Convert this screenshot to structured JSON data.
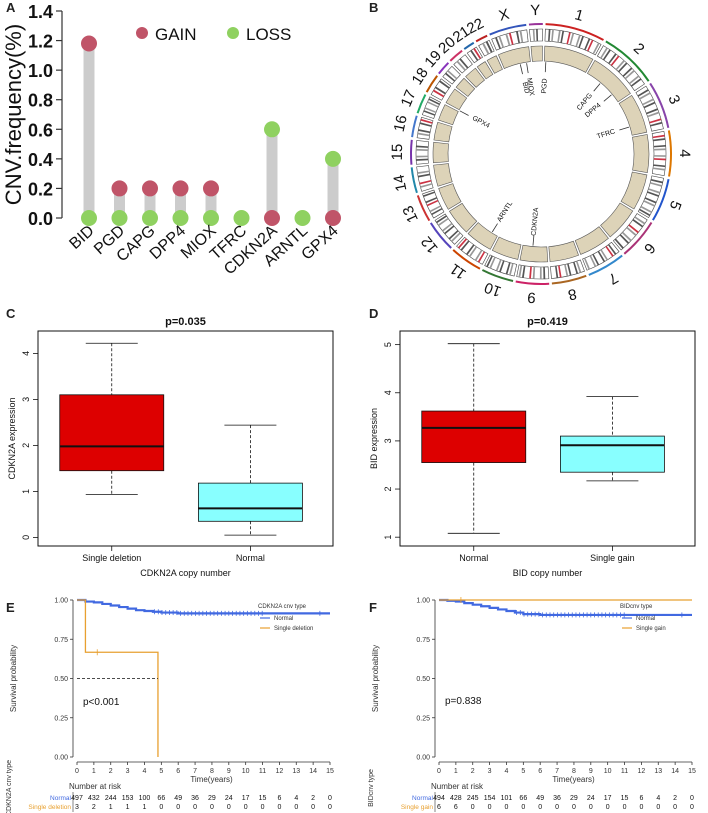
{
  "colors": {
    "gain": "#c05468",
    "loss": "#8fd160",
    "stem": "#cccccc",
    "box_red": "#dd0000",
    "box_cyan": "#88ffff",
    "km_normal": "#4169e1",
    "km_alt": "#e8a030",
    "ring_fill": "#ddd3b8"
  },
  "panel_labels": [
    "A",
    "B",
    "C",
    "D",
    "E",
    "F"
  ],
  "chart_data": [
    {
      "id": "A",
      "type": "scatter",
      "subtype": "lollipop",
      "ylabel": "CNV.frequency(%)",
      "ylim": [
        0,
        1.4
      ],
      "yticks": [
        "0.0",
        "0.2",
        "0.4",
        "0.6",
        "0.8",
        "1.0",
        "1.2",
        "1.4"
      ],
      "categories": [
        "BID",
        "PGD",
        "CAPG",
        "DPP4",
        "MIOX",
        "TFRC",
        "CDKN2A",
        "ARNTL",
        "GPX4"
      ],
      "series": [
        {
          "name": "GAIN",
          "values": [
            1.18,
            0.2,
            0.2,
            0.2,
            0.2,
            0.0,
            0.0,
            0.0,
            0.0
          ]
        },
        {
          "name": "LOSS",
          "values": [
            0.0,
            0.0,
            0.0,
            0.0,
            0.0,
            0.0,
            0.6,
            0.0,
            0.4
          ]
        }
      ],
      "legend": [
        "GAIN",
        "LOSS"
      ]
    },
    {
      "id": "B",
      "type": "other",
      "subtype": "circos",
      "chromosomes": [
        "1",
        "2",
        "3",
        "4",
        "5",
        "6",
        "7",
        "8",
        "9",
        "10",
        "11",
        "12",
        "13",
        "14",
        "15",
        "16",
        "17",
        "18",
        "19",
        "20",
        "21",
        "22",
        "X",
        "Y"
      ],
      "gene_labels": [
        "PGD",
        "CAPG",
        "DPP4",
        "TFRC",
        "CDKN2A",
        "ARNTL",
        "GPX4",
        "BID",
        "MIOX"
      ]
    },
    {
      "id": "C",
      "type": "other",
      "subtype": "boxplot",
      "title": "p=0.035",
      "xlabel": "CDKN2A copy number",
      "ylabel": "CDKN2A expression",
      "ylim": [
        -0.1,
        4.4
      ],
      "yticks": [
        "0",
        "1",
        "2",
        "3",
        "4"
      ],
      "categories": [
        "Single deletion",
        "Normal"
      ],
      "boxes": [
        {
          "min": 0.93,
          "q1": 1.45,
          "median": 1.98,
          "q3": 3.1,
          "max": 4.22
        },
        {
          "min": 0.05,
          "q1": 0.35,
          "median": 0.63,
          "q3": 1.18,
          "max": 2.44
        }
      ]
    },
    {
      "id": "D",
      "type": "other",
      "subtype": "boxplot",
      "title": "p=0.419",
      "xlabel": "BID copy number",
      "ylabel": "BID expression",
      "ylim": [
        0.9,
        5.2
      ],
      "yticks": [
        "1",
        "2",
        "3",
        "4",
        "5"
      ],
      "categories": [
        "Normal",
        "Single gain"
      ],
      "boxes": [
        {
          "min": 1.08,
          "q1": 2.55,
          "median": 3.27,
          "q3": 3.62,
          "max": 5.02
        },
        {
          "min": 2.17,
          "q1": 2.35,
          "median": 2.91,
          "q3": 3.1,
          "max": 3.92
        }
      ]
    },
    {
      "id": "E",
      "type": "line",
      "subtype": "kaplan-meier",
      "ylabel": "Survival probability",
      "xlabel": "Time(years)",
      "xlim": [
        0,
        15
      ],
      "ylim": [
        0,
        1
      ],
      "xticks": [
        "0",
        "1",
        "2",
        "3",
        "4",
        "5",
        "6",
        "7",
        "8",
        "9",
        "10",
        "11",
        "12",
        "13",
        "14",
        "15"
      ],
      "yticks": [
        "0.00",
        "0.25",
        "0.50",
        "0.75",
        "1.00"
      ],
      "pvalue": "p<0.001",
      "legend_title": "CDKN2A cnv type",
      "series": [
        {
          "name": "Normal",
          "x": [
            0,
            0.5,
            1,
            1.5,
            2,
            2.5,
            3,
            3.5,
            4,
            4.5,
            5,
            6,
            8,
            10,
            11,
            14,
            15
          ],
          "y": [
            1.0,
            0.99,
            0.985,
            0.975,
            0.965,
            0.955,
            0.945,
            0.935,
            0.93,
            0.925,
            0.92,
            0.915,
            0.915,
            0.915,
            0.915,
            0.915,
            0.915
          ]
        },
        {
          "name": "Single deletion",
          "x": [
            0,
            0.5,
            4.8,
            4.8
          ],
          "y": [
            1.0,
            0.667,
            0.667,
            0.0
          ]
        }
      ],
      "risk_table": {
        "title": "Number at risk",
        "ylabel": "CDKN2A cnv type",
        "rows": [
          {
            "name": "Normal",
            "values": [
              "497",
              "432",
              "244",
              "153",
              "100",
              "66",
              "49",
              "36",
              "29",
              "24",
              "17",
              "15",
              "6",
              "4",
              "2",
              "0"
            ]
          },
          {
            "name": "Single deletion",
            "values": [
              "3",
              "2",
              "1",
              "1",
              "1",
              "0",
              "0",
              "0",
              "0",
              "0",
              "0",
              "0",
              "0",
              "0",
              "0",
              "0"
            ]
          }
        ]
      }
    },
    {
      "id": "F",
      "type": "line",
      "subtype": "kaplan-meier",
      "ylabel": "Survival probability",
      "xlabel": "Time(years)",
      "xlim": [
        0,
        15
      ],
      "ylim": [
        0,
        1
      ],
      "xticks": [
        "0",
        "1",
        "2",
        "3",
        "4",
        "5",
        "6",
        "7",
        "8",
        "9",
        "10",
        "11",
        "12",
        "13",
        "14",
        "15"
      ],
      "yticks": [
        "0.00",
        "0.25",
        "0.50",
        "0.75",
        "1.00"
      ],
      "pvalue": "p=0.838",
      "legend_title": "BIDcnv type",
      "series": [
        {
          "name": "Normal",
          "x": [
            0,
            0.5,
            1,
            1.5,
            2,
            2.5,
            3,
            3.5,
            4,
            4.5,
            5,
            6,
            8,
            10,
            11,
            14,
            15
          ],
          "y": [
            1.0,
            0.995,
            0.99,
            0.98,
            0.97,
            0.96,
            0.95,
            0.94,
            0.93,
            0.92,
            0.91,
            0.905,
            0.905,
            0.905,
            0.905,
            0.905,
            0.905
          ]
        },
        {
          "name": "Single gain",
          "x": [
            0,
            15
          ],
          "y": [
            1.0,
            1.0
          ]
        }
      ],
      "risk_table": {
        "title": "Number at risk",
        "ylabel": "BIDcnv type",
        "rows": [
          {
            "name": "Normal",
            "values": [
              "494",
              "428",
              "245",
              "154",
              "101",
              "66",
              "49",
              "36",
              "29",
              "24",
              "17",
              "15",
              "6",
              "4",
              "2",
              "0"
            ]
          },
          {
            "name": "Single gain",
            "values": [
              "6",
              "6",
              "0",
              "0",
              "0",
              "0",
              "0",
              "0",
              "0",
              "0",
              "0",
              "0",
              "0",
              "0",
              "0",
              "0"
            ]
          }
        ]
      }
    }
  ]
}
